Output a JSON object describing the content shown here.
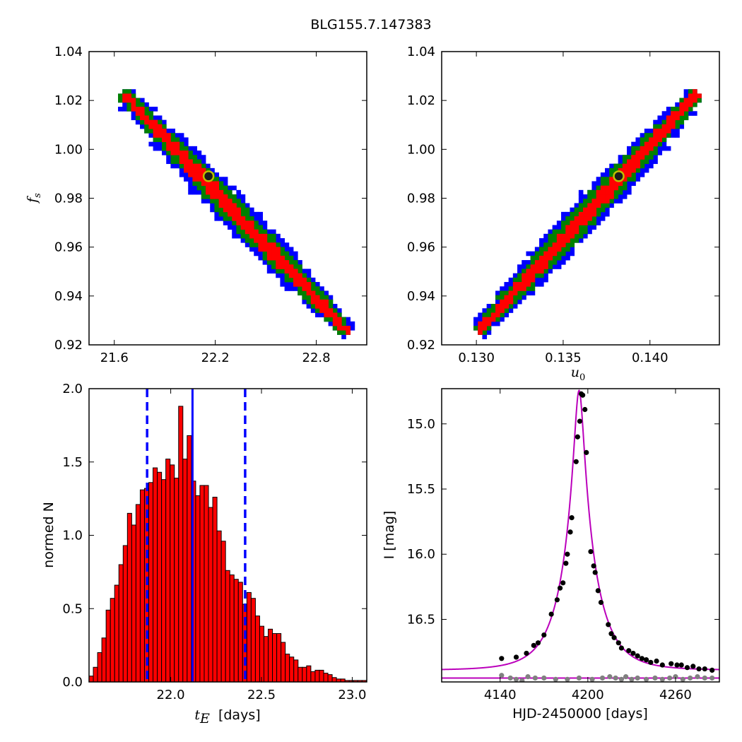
{
  "figure": {
    "title": "BLG155.7.147383"
  },
  "chart_data": [
    {
      "id": "fs_vs_tE",
      "type": "heatmap",
      "xlim": [
        21.45,
        23.1
      ],
      "ylim": [
        0.92,
        1.04
      ],
      "xticks": [
        "21.6",
        "22.2",
        "22.8"
      ],
      "xtick_values": [
        21.6,
        22.2,
        22.8
      ],
      "yticks": [
        "0.92",
        "0.94",
        "0.96",
        "0.98",
        "1.00",
        "1.02",
        "1.04"
      ],
      "ytick_values": [
        0.92,
        0.94,
        0.96,
        0.98,
        1.0,
        1.02,
        1.04
      ],
      "xlabel": "",
      "ylabel": "f_s",
      "ylabel_base": "f",
      "ylabel_sub": "s",
      "contours": {
        "outer": "#0000ff",
        "middle": "#008000",
        "inner": "#ff0000"
      },
      "ridge": [
        [
          21.66,
          1.022
        ],
        [
          22.16,
          0.989
        ],
        [
          22.98,
          0.926
        ]
      ],
      "best_fit": {
        "x": 22.16,
        "y": 0.989,
        "fill": "#1a1a1a",
        "ring": "#bfbf00"
      }
    },
    {
      "id": "fs_vs_u0",
      "type": "heatmap",
      "xlim": [
        0.128,
        0.144
      ],
      "ylim": [
        0.92,
        1.04
      ],
      "xticks": [
        "0.130",
        "0.135",
        "0.140"
      ],
      "xtick_values": [
        0.13,
        0.135,
        0.14
      ],
      "yticks": [
        "0.92",
        "0.94",
        "0.96",
        "0.98",
        "1.00",
        "1.02",
        "1.04"
      ],
      "ytick_values": [
        0.92,
        0.94,
        0.96,
        0.98,
        1.0,
        1.02,
        1.04
      ],
      "xlabel": "u_0",
      "xlabel_base": "u",
      "xlabel_sub": "0",
      "ylabel": "",
      "contours": {
        "outer": "#0000ff",
        "middle": "#008000",
        "inner": "#ff0000"
      },
      "ridge": [
        [
          0.1302,
          0.926
        ],
        [
          0.1382,
          0.989
        ],
        [
          0.1426,
          1.022
        ]
      ],
      "best_fit": {
        "x": 0.1382,
        "y": 0.989,
        "fill": "#1a1a1a",
        "ring": "#bfbf00"
      }
    },
    {
      "id": "tE_histogram",
      "type": "bar",
      "xlim": [
        21.55,
        23.08
      ],
      "ylim": [
        0,
        2.0
      ],
      "xticks": [
        "22.0",
        "22.5",
        "23.0"
      ],
      "xtick_values": [
        22.0,
        22.5,
        23.0
      ],
      "yticks": [
        "0.0",
        "0.5",
        "1.0",
        "1.5",
        "2.0"
      ],
      "ytick_values": [
        0.0,
        0.5,
        1.0,
        1.5,
        2.0
      ],
      "xlabel": "t_E  [days]",
      "xlabel_base": "t",
      "xlabel_sub": "E",
      "xlabel_unit": "  [days]",
      "ylabel": "normed N",
      "bin_start": 21.55,
      "bin_width": 0.0235,
      "values": [
        0.04,
        0.1,
        0.2,
        0.3,
        0.49,
        0.57,
        0.66,
        0.8,
        0.93,
        1.15,
        1.07,
        1.21,
        1.31,
        1.32,
        1.36,
        1.46,
        1.43,
        1.38,
        1.52,
        1.48,
        1.39,
        1.88,
        1.52,
        1.68,
        1.37,
        1.27,
        1.34,
        1.34,
        1.19,
        1.26,
        1.03,
        0.96,
        0.76,
        0.73,
        0.7,
        0.68,
        0.53,
        0.61,
        0.57,
        0.45,
        0.38,
        0.31,
        0.36,
        0.33,
        0.33,
        0.27,
        0.19,
        0.17,
        0.15,
        0.1,
        0.1,
        0.11,
        0.07,
        0.08,
        0.08,
        0.06,
        0.05,
        0.03,
        0.02,
        0.02,
        0.01,
        0.01,
        0.01,
        0.01,
        0.01
      ],
      "bar_color": "#ff0000",
      "median": 22.12,
      "lower": 21.87,
      "upper": 22.41,
      "line_color": "#0000ff"
    },
    {
      "id": "light_curve",
      "type": "scatter",
      "xlim": [
        4100,
        4290
      ],
      "ylim": [
        16.98,
        14.73
      ],
      "y_inverted": true,
      "xticks": [
        "4140",
        "4200",
        "4260"
      ],
      "xtick_values": [
        4140,
        4200,
        4260
      ],
      "yticks": [
        "15.0",
        "15.5",
        "16.0",
        "16.5"
      ],
      "ytick_values": [
        15.0,
        15.5,
        16.0,
        16.5
      ],
      "xlabel": "HJD-2450000 [days]",
      "ylabel": "I [mag]",
      "model": {
        "t0": 4194.0,
        "tE": 22.16,
        "u0": 0.1382,
        "fs": 0.989,
        "base_mag": 16.89,
        "color": "#bb00bb"
      },
      "residual_level": 16.95,
      "data_color": "#000000",
      "residual_color": "#808080",
      "observations": [
        [
          4141,
          16.8
        ],
        [
          4151,
          16.79
        ],
        [
          4158,
          16.76
        ],
        [
          4163,
          16.7
        ],
        [
          4166,
          16.68
        ],
        [
          4170,
          16.62
        ],
        [
          4175,
          16.46
        ],
        [
          4179,
          16.35
        ],
        [
          4181,
          16.26
        ],
        [
          4183,
          16.22
        ],
        [
          4185,
          16.07
        ],
        [
          4186,
          16.0
        ],
        [
          4188,
          15.83
        ],
        [
          4189,
          15.72
        ],
        [
          4192,
          15.29
        ],
        [
          4193,
          15.1
        ],
        [
          4194.5,
          14.98
        ],
        [
          4195.5,
          14.77
        ],
        [
          4196.5,
          14.78
        ],
        [
          4198,
          14.89
        ],
        [
          4199,
          15.22
        ],
        [
          4202,
          15.98
        ],
        [
          4204,
          16.09
        ],
        [
          4205,
          16.14
        ],
        [
          4207,
          16.28
        ],
        [
          4209,
          16.37
        ],
        [
          4214,
          16.54
        ],
        [
          4216,
          16.61
        ],
        [
          4218,
          16.64
        ],
        [
          4221,
          16.68
        ],
        [
          4223,
          16.72
        ],
        [
          4228,
          16.74
        ],
        [
          4231,
          16.76
        ],
        [
          4234,
          16.78
        ],
        [
          4237,
          16.8
        ],
        [
          4240,
          16.81
        ],
        [
          4243,
          16.83
        ],
        [
          4247,
          16.82
        ],
        [
          4251,
          16.85
        ],
        [
          4257,
          16.84
        ],
        [
          4261,
          16.85
        ],
        [
          4264,
          16.85
        ],
        [
          4268,
          16.87
        ],
        [
          4272,
          16.86
        ],
        [
          4276,
          16.88
        ],
        [
          4280,
          16.88
        ],
        [
          4285,
          16.89
        ]
      ],
      "residuals": [
        [
          4141,
          16.93
        ],
        [
          4147,
          16.95
        ],
        [
          4151,
          16.96
        ],
        [
          4155,
          16.97
        ],
        [
          4159,
          16.94
        ],
        [
          4164,
          16.95
        ],
        [
          4170,
          16.95
        ],
        [
          4178,
          16.96
        ],
        [
          4186,
          16.96
        ],
        [
          4194,
          16.95
        ],
        [
          4203,
          16.96
        ],
        [
          4210,
          16.95
        ],
        [
          4215,
          16.94
        ],
        [
          4219,
          16.95
        ],
        [
          4223,
          16.96
        ],
        [
          4226,
          16.94
        ],
        [
          4230,
          16.96
        ],
        [
          4234,
          16.95
        ],
        [
          4240,
          16.96
        ],
        [
          4246,
          16.95
        ],
        [
          4251,
          16.96
        ],
        [
          4256,
          16.95
        ],
        [
          4260,
          16.94
        ],
        [
          4265,
          16.96
        ],
        [
          4270,
          16.95
        ],
        [
          4275,
          16.94
        ],
        [
          4280,
          16.95
        ],
        [
          4285,
          16.95
        ]
      ]
    }
  ]
}
